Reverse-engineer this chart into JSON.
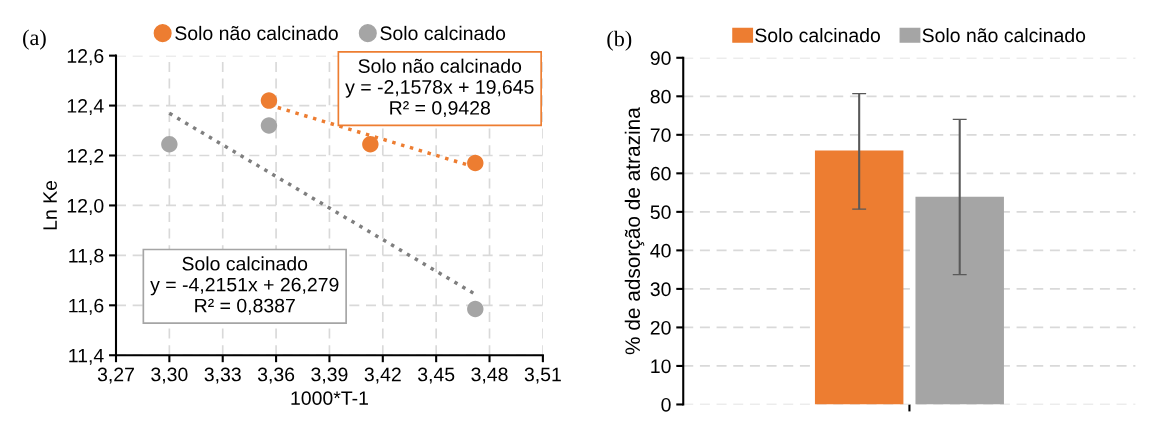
{
  "chart_data": [
    {
      "type": "scatter",
      "title": "(a)",
      "xlabel": "1000*T-1",
      "ylabel": "Ln Ke",
      "series": [
        {
          "name": "Solo não calcinado",
          "color": "#ed7d31",
          "x": [
            3.356,
            3.413,
            3.472
          ],
          "values": [
            12.42,
            12.245,
            12.17
          ]
        },
        {
          "name": "Solo calcinado",
          "color": "#a5a5a5",
          "x": [
            3.3,
            3.356,
            3.472
          ],
          "values": [
            12.245,
            12.32,
            11.585
          ]
        },
        {
          "type": "line",
          "color": "#ed7d31",
          "line_style": "dotted",
          "marker": "none",
          "x": [
            3.356,
            3.472
          ],
          "values": [
            12.403,
            12.153
          ]
        },
        {
          "type": "line",
          "color": "#7f7f7f",
          "line_style": "dotted",
          "marker": "none",
          "x": [
            3.3,
            3.472
          ],
          "values": [
            12.369,
            11.644
          ]
        }
      ],
      "marker": "circle",
      "xlim": [
        3.27,
        3.51
      ],
      "xticks": [
        {
          "value": 3.27,
          "label": "3,27"
        },
        {
          "value": 3.3,
          "label": "3,30"
        },
        {
          "value": 3.33,
          "label": "3,33"
        },
        {
          "value": 3.36,
          "label": "3,36"
        },
        {
          "value": 3.39,
          "label": "3,39"
        },
        {
          "value": 3.42,
          "label": "3,42"
        },
        {
          "value": 3.45,
          "label": "3,45"
        },
        {
          "value": 3.48,
          "label": "3,48"
        },
        {
          "value": 3.51,
          "label": "3,51"
        }
      ],
      "ylim": [
        11.4,
        12.6
      ],
      "yticks": [
        {
          "value": 11.4,
          "label": "11,4"
        },
        {
          "value": 11.6,
          "label": "11,6"
        },
        {
          "value": 11.8,
          "label": "11,8"
        },
        {
          "value": 12.0,
          "label": "12,0"
        },
        {
          "value": 12.2,
          "label": "12,2"
        },
        {
          "value": 12.4,
          "label": "12,4"
        },
        {
          "value": 12.6,
          "label": "12,6"
        }
      ],
      "annotations": [
        "Solo não calcinado\ny = -2,1578x + 19,645\nR² = 0,9428",
        "Solo calcinado\ny = -4,2151x + 26,279\nR² = 0,8387"
      ],
      "grid": true,
      "legend": "top"
    },
    {
      "type": "bar",
      "title": "(b)",
      "ylabel": "% de adsorção de atrazina",
      "categories": [
        null
      ],
      "series": [
        {
          "name": "Solo calcinado",
          "color": "#ed7d31",
          "values": [
            65.9
          ],
          "errors": [
            [
              50.7,
              80.7
            ]
          ]
        },
        {
          "name": "Solo não calcinado",
          "color": "#a5a5a5",
          "values": [
            53.9
          ],
          "errors": [
            [
              33.7,
              74.0
            ]
          ]
        }
      ],
      "ylim": [
        0,
        90
      ],
      "yticks": [
        0,
        10,
        20,
        30,
        40,
        50,
        60,
        70,
        80,
        90
      ],
      "grid": "y",
      "legend": "top"
    }
  ]
}
